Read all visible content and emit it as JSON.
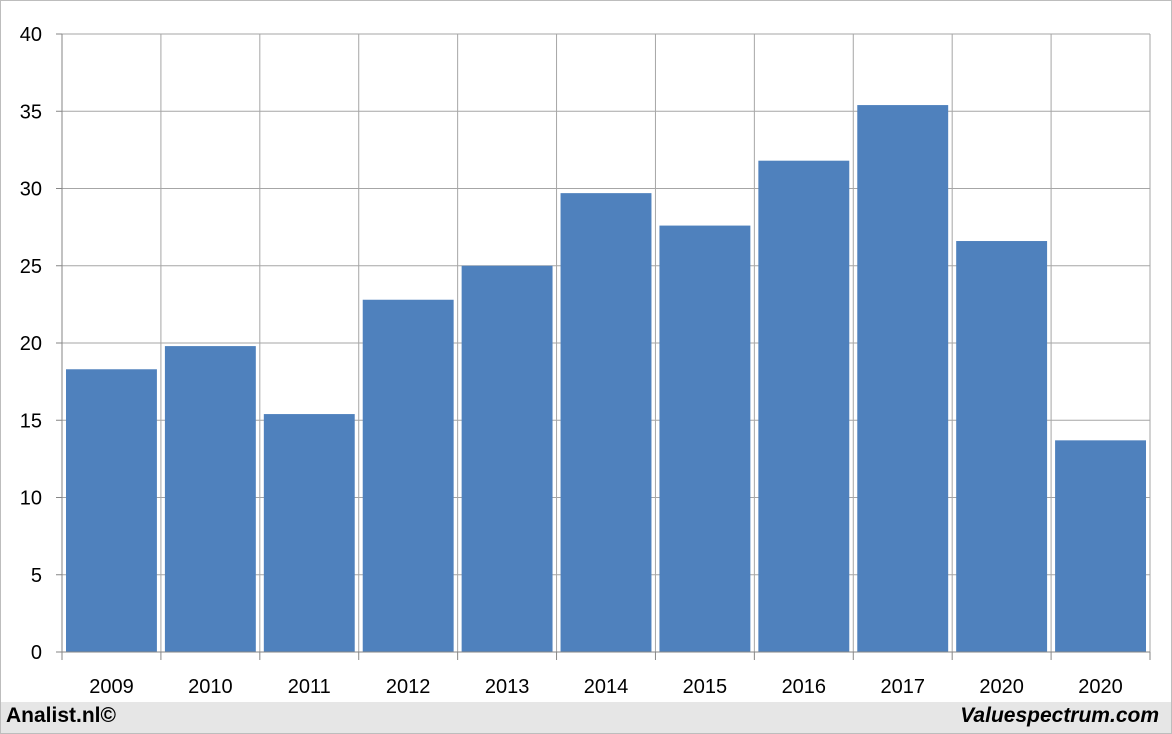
{
  "chart_data": {
    "type": "bar",
    "categories": [
      "2009",
      "2010",
      "2011",
      "2012",
      "2013",
      "2014",
      "2015",
      "2016",
      "2017",
      "2020",
      "2020"
    ],
    "values": [
      18.3,
      19.8,
      15.4,
      22.8,
      25.0,
      29.7,
      27.6,
      31.8,
      35.4,
      26.6,
      13.7
    ],
    "ylim": [
      0,
      40
    ],
    "yticks": [
      0,
      5,
      10,
      15,
      20,
      25,
      30,
      35,
      40
    ],
    "grid": true,
    "title": "",
    "xlabel": "",
    "ylabel": "",
    "bar_color": "#4f81bd",
    "grid_color": "#a6a6a6"
  },
  "footer": {
    "left": "Analist.nl©",
    "right": "Valuespectrum.com",
    "background": "#e6e6e6"
  }
}
